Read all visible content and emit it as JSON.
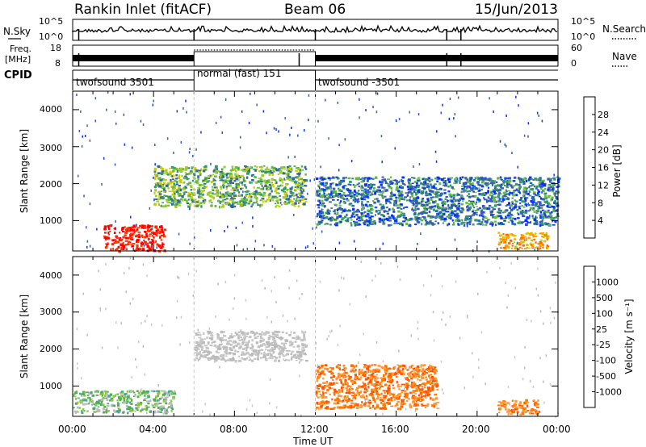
{
  "header": {
    "station": "Rankin Inlet (fitACF)",
    "beam": "Beam 06",
    "date": "15/Jun/2013"
  },
  "time_axis": {
    "label": "Time UT",
    "ticks": [
      "00:00",
      "04:00",
      "08:00",
      "12:00",
      "16:00",
      "20:00",
      "00:00"
    ]
  },
  "nsky_panel": {
    "left_label": "N.Sky",
    "right_label": "N.Search",
    "left_ticks": [
      "10^5",
      "10^0"
    ],
    "right_ticks": [
      "10^5",
      "10^0"
    ]
  },
  "freq_panel": {
    "left_label_1": "Freq.",
    "left_label_2": "[MHz]",
    "right_label": "Nave",
    "left_ticks": [
      "18",
      "8"
    ],
    "right_ticks": [
      "60",
      "0"
    ]
  },
  "cpid_panel": {
    "label": "CPID",
    "segments": [
      {
        "label": "twofsound 3501",
        "start_h": 0,
        "end_h": 6
      },
      {
        "label": "normal (fast) 151",
        "start_h": 6,
        "end_h": 12
      },
      {
        "label": "twofsound -3501",
        "start_h": 12,
        "end_h": 24
      }
    ]
  },
  "power_panel": {
    "ylabel": "Slant Range [km]",
    "yticks": [
      "4000",
      "3000",
      "2000",
      "1000"
    ],
    "cbar_label": "Power [dB]",
    "cbar_ticks": [
      "28",
      "24",
      "20",
      "16",
      "12",
      "8",
      "4"
    ],
    "cbar_colors": [
      "#ff0000",
      "#ff3300",
      "#ff6600",
      "#ff9900",
      "#ffaa00",
      "#cccc00",
      "#99cc33",
      "#66bb44",
      "#339966",
      "#336699",
      "#3355cc",
      "#0033ff"
    ]
  },
  "velocity_panel": {
    "ylabel": "Slant Range [km]",
    "yticks": [
      "4000",
      "3000",
      "2000",
      "1000"
    ],
    "cbar_label": "Velocity  [m s⁻¹]",
    "cbar_ticks": [
      "1000",
      "500",
      "100",
      "25",
      "-25",
      "-100",
      "-500",
      "-1000"
    ],
    "cbar_colors": [
      "#2244aa",
      "#3366cc",
      "#44aa88",
      "#55aa55",
      "#88cc33",
      "#bbbbbb",
      "#c8c8c8",
      "#ff9933",
      "#ff7700",
      "#ff5500",
      "#ff2200",
      "#ee0000"
    ]
  },
  "chart_data": {
    "type": "heatmap",
    "title": "Rankin Inlet (fitACF)  Beam 06  15/Jun/2013",
    "xlabel": "Time UT",
    "ylabel": "Slant Range [km]",
    "x_range_hours": [
      0,
      24
    ],
    "y_range_km": [
      180,
      4500
    ],
    "panels": [
      {
        "name": "Power",
        "unit": "dB",
        "colorbar": [
          4,
          8,
          12,
          16,
          20,
          24,
          28
        ],
        "features": [
          {
            "desc": "strong near-range echo",
            "t": [
              1.5,
              4.5
            ],
            "r": [
              200,
              900
            ],
            "level": 28
          },
          {
            "desc": "scatter band",
            "t": [
              4.0,
              11.5
            ],
            "r": [
              1400,
              2500
            ],
            "level": 14
          },
          {
            "desc": "scatter band",
            "t": [
              12.0,
              24.0
            ],
            "r": [
              900,
              2200
            ],
            "level": 10
          },
          {
            "desc": "near-range echo",
            "t": [
              21.0,
              23.5
            ],
            "r": [
              250,
              700
            ],
            "level": 22
          }
        ]
      },
      {
        "name": "Velocity",
        "unit": "m s^-1",
        "colorbar": [
          -1000,
          -500,
          -100,
          -25,
          25,
          100,
          500,
          1000
        ],
        "features": [
          {
            "desc": "low-velocity echo",
            "t": [
              6.0,
              11.5
            ],
            "r": [
              1700,
              2500
            ],
            "level": 0
          },
          {
            "desc": "negative velocity band",
            "t": [
              12.0,
              18.0
            ],
            "r": [
              400,
              1600
            ],
            "level": -300
          },
          {
            "desc": "positive velocity near range",
            "t": [
              0.0,
              5.0
            ],
            "r": [
              300,
              900
            ],
            "level": 150
          },
          {
            "desc": "negative velocity near range",
            "t": [
              21.0,
              23.0
            ],
            "r": [
              250,
              650
            ],
            "level": -300
          }
        ]
      }
    ]
  }
}
